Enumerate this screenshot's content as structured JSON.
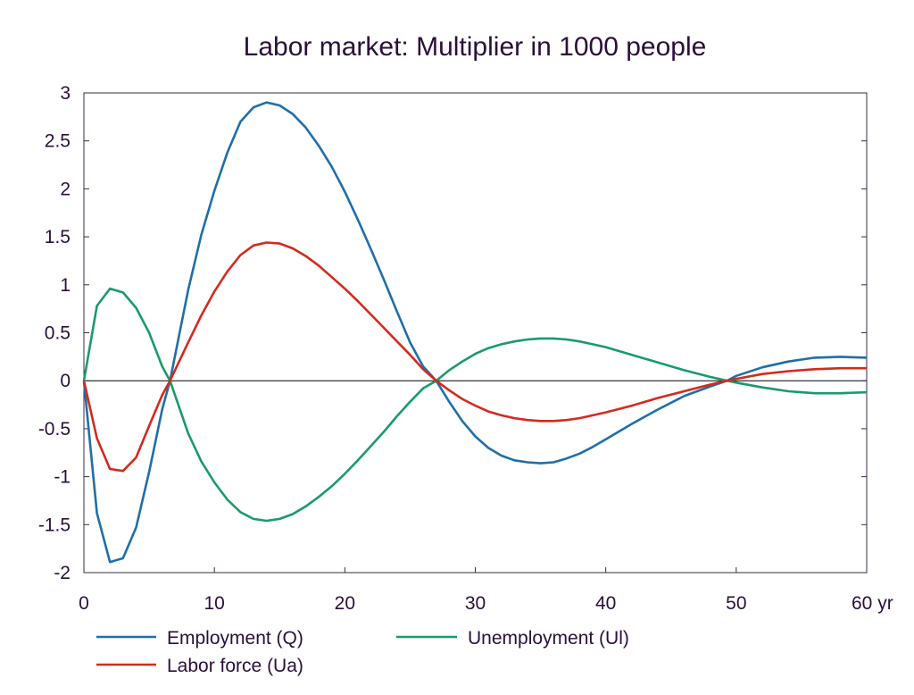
{
  "chart_data": {
    "type": "line",
    "title": "Labor market: Multiplier in 1000 people",
    "xlabel": "",
    "ylabel": "",
    "x_unit_label": "yr",
    "xlim": [
      0,
      60
    ],
    "ylim": [
      -2,
      3
    ],
    "x_ticks": [
      0,
      10,
      20,
      30,
      40,
      50,
      60
    ],
    "x_tick_labels": [
      "0",
      "10",
      "20",
      "30",
      "40",
      "50",
      "60 yr"
    ],
    "y_ticks": [
      3,
      2.5,
      2,
      1.5,
      1,
      0.5,
      0,
      -0.5,
      -1,
      -1.5,
      -2
    ],
    "y_tick_labels": [
      "3",
      "2.5",
      "2",
      "1.5",
      "1",
      "0.5",
      "0",
      "-0.5",
      "-1",
      "-1.5",
      "-2"
    ],
    "grid": false,
    "zero_line": true,
    "legend_position": "bottom",
    "series": [
      {
        "name": "Employment (Q)",
        "color": "#1f6fa8",
        "x": [
          0,
          1,
          2,
          3,
          4,
          5,
          6,
          6.6,
          8,
          9,
          10,
          11,
          12,
          13,
          14,
          15,
          16,
          17,
          18,
          19,
          20,
          21,
          22,
          23,
          24,
          25,
          26,
          27,
          28,
          29,
          30,
          31,
          32,
          33,
          34,
          35,
          36,
          37,
          38,
          39,
          40,
          42,
          44,
          46,
          48,
          49.3,
          50,
          52,
          54,
          56,
          58,
          60
        ],
        "y": [
          0,
          -1.38,
          -1.89,
          -1.85,
          -1.53,
          -0.95,
          -0.3,
          0,
          0.95,
          1.52,
          1.98,
          2.38,
          2.7,
          2.85,
          2.9,
          2.87,
          2.78,
          2.64,
          2.45,
          2.23,
          1.97,
          1.68,
          1.37,
          1.05,
          0.72,
          0.4,
          0.15,
          0,
          -0.22,
          -0.42,
          -0.58,
          -0.7,
          -0.78,
          -0.83,
          -0.85,
          -0.86,
          -0.85,
          -0.81,
          -0.76,
          -0.69,
          -0.61,
          -0.45,
          -0.3,
          -0.16,
          -0.06,
          0,
          0.05,
          0.14,
          0.2,
          0.24,
          0.25,
          0.24
        ]
      },
      {
        "name": "Unemployment (Ul)",
        "color": "#1a9a6c",
        "x": [
          0,
          1,
          2,
          3,
          4,
          5,
          6,
          6.6,
          8,
          9,
          10,
          11,
          12,
          13,
          14,
          15,
          16,
          17,
          18,
          19,
          20,
          21,
          22,
          23,
          24,
          25,
          26,
          27,
          28,
          29,
          30,
          31,
          32,
          33,
          34,
          35,
          36,
          37,
          38,
          39,
          40,
          42,
          44,
          46,
          48,
          49.3,
          50,
          52,
          54,
          56,
          58,
          60
        ],
        "y": [
          0,
          0.78,
          0.96,
          0.92,
          0.76,
          0.5,
          0.15,
          0,
          -0.55,
          -0.84,
          -1.06,
          -1.24,
          -1.37,
          -1.44,
          -1.46,
          -1.44,
          -1.39,
          -1.31,
          -1.21,
          -1.1,
          -0.97,
          -0.83,
          -0.68,
          -0.53,
          -0.37,
          -0.22,
          -0.08,
          0,
          0.11,
          0.2,
          0.28,
          0.34,
          0.38,
          0.41,
          0.43,
          0.44,
          0.44,
          0.43,
          0.41,
          0.38,
          0.35,
          0.27,
          0.19,
          0.11,
          0.04,
          0,
          -0.02,
          -0.07,
          -0.11,
          -0.13,
          -0.13,
          -0.12
        ]
      },
      {
        "name": "Labor force (Ua)",
        "color": "#d42a1e",
        "x": [
          0,
          1,
          2,
          3,
          4,
          5,
          6,
          6.6,
          8,
          9,
          10,
          11,
          12,
          13,
          14,
          15,
          16,
          17,
          18,
          19,
          20,
          21,
          22,
          23,
          24,
          25,
          26,
          27,
          28,
          29,
          30,
          31,
          32,
          33,
          34,
          35,
          36,
          37,
          38,
          39,
          40,
          42,
          44,
          46,
          48,
          49.3,
          50,
          52,
          54,
          56,
          58,
          60
        ],
        "y": [
          0,
          -0.6,
          -0.92,
          -0.94,
          -0.8,
          -0.47,
          -0.15,
          0,
          0.4,
          0.68,
          0.93,
          1.14,
          1.31,
          1.41,
          1.44,
          1.43,
          1.38,
          1.3,
          1.2,
          1.08,
          0.96,
          0.83,
          0.69,
          0.55,
          0.41,
          0.27,
          0.12,
          0,
          -0.1,
          -0.19,
          -0.26,
          -0.32,
          -0.36,
          -0.39,
          -0.41,
          -0.42,
          -0.42,
          -0.41,
          -0.39,
          -0.36,
          -0.33,
          -0.26,
          -0.18,
          -0.11,
          -0.04,
          0,
          0.02,
          0.07,
          0.1,
          0.12,
          0.13,
          0.13
        ]
      }
    ]
  }
}
